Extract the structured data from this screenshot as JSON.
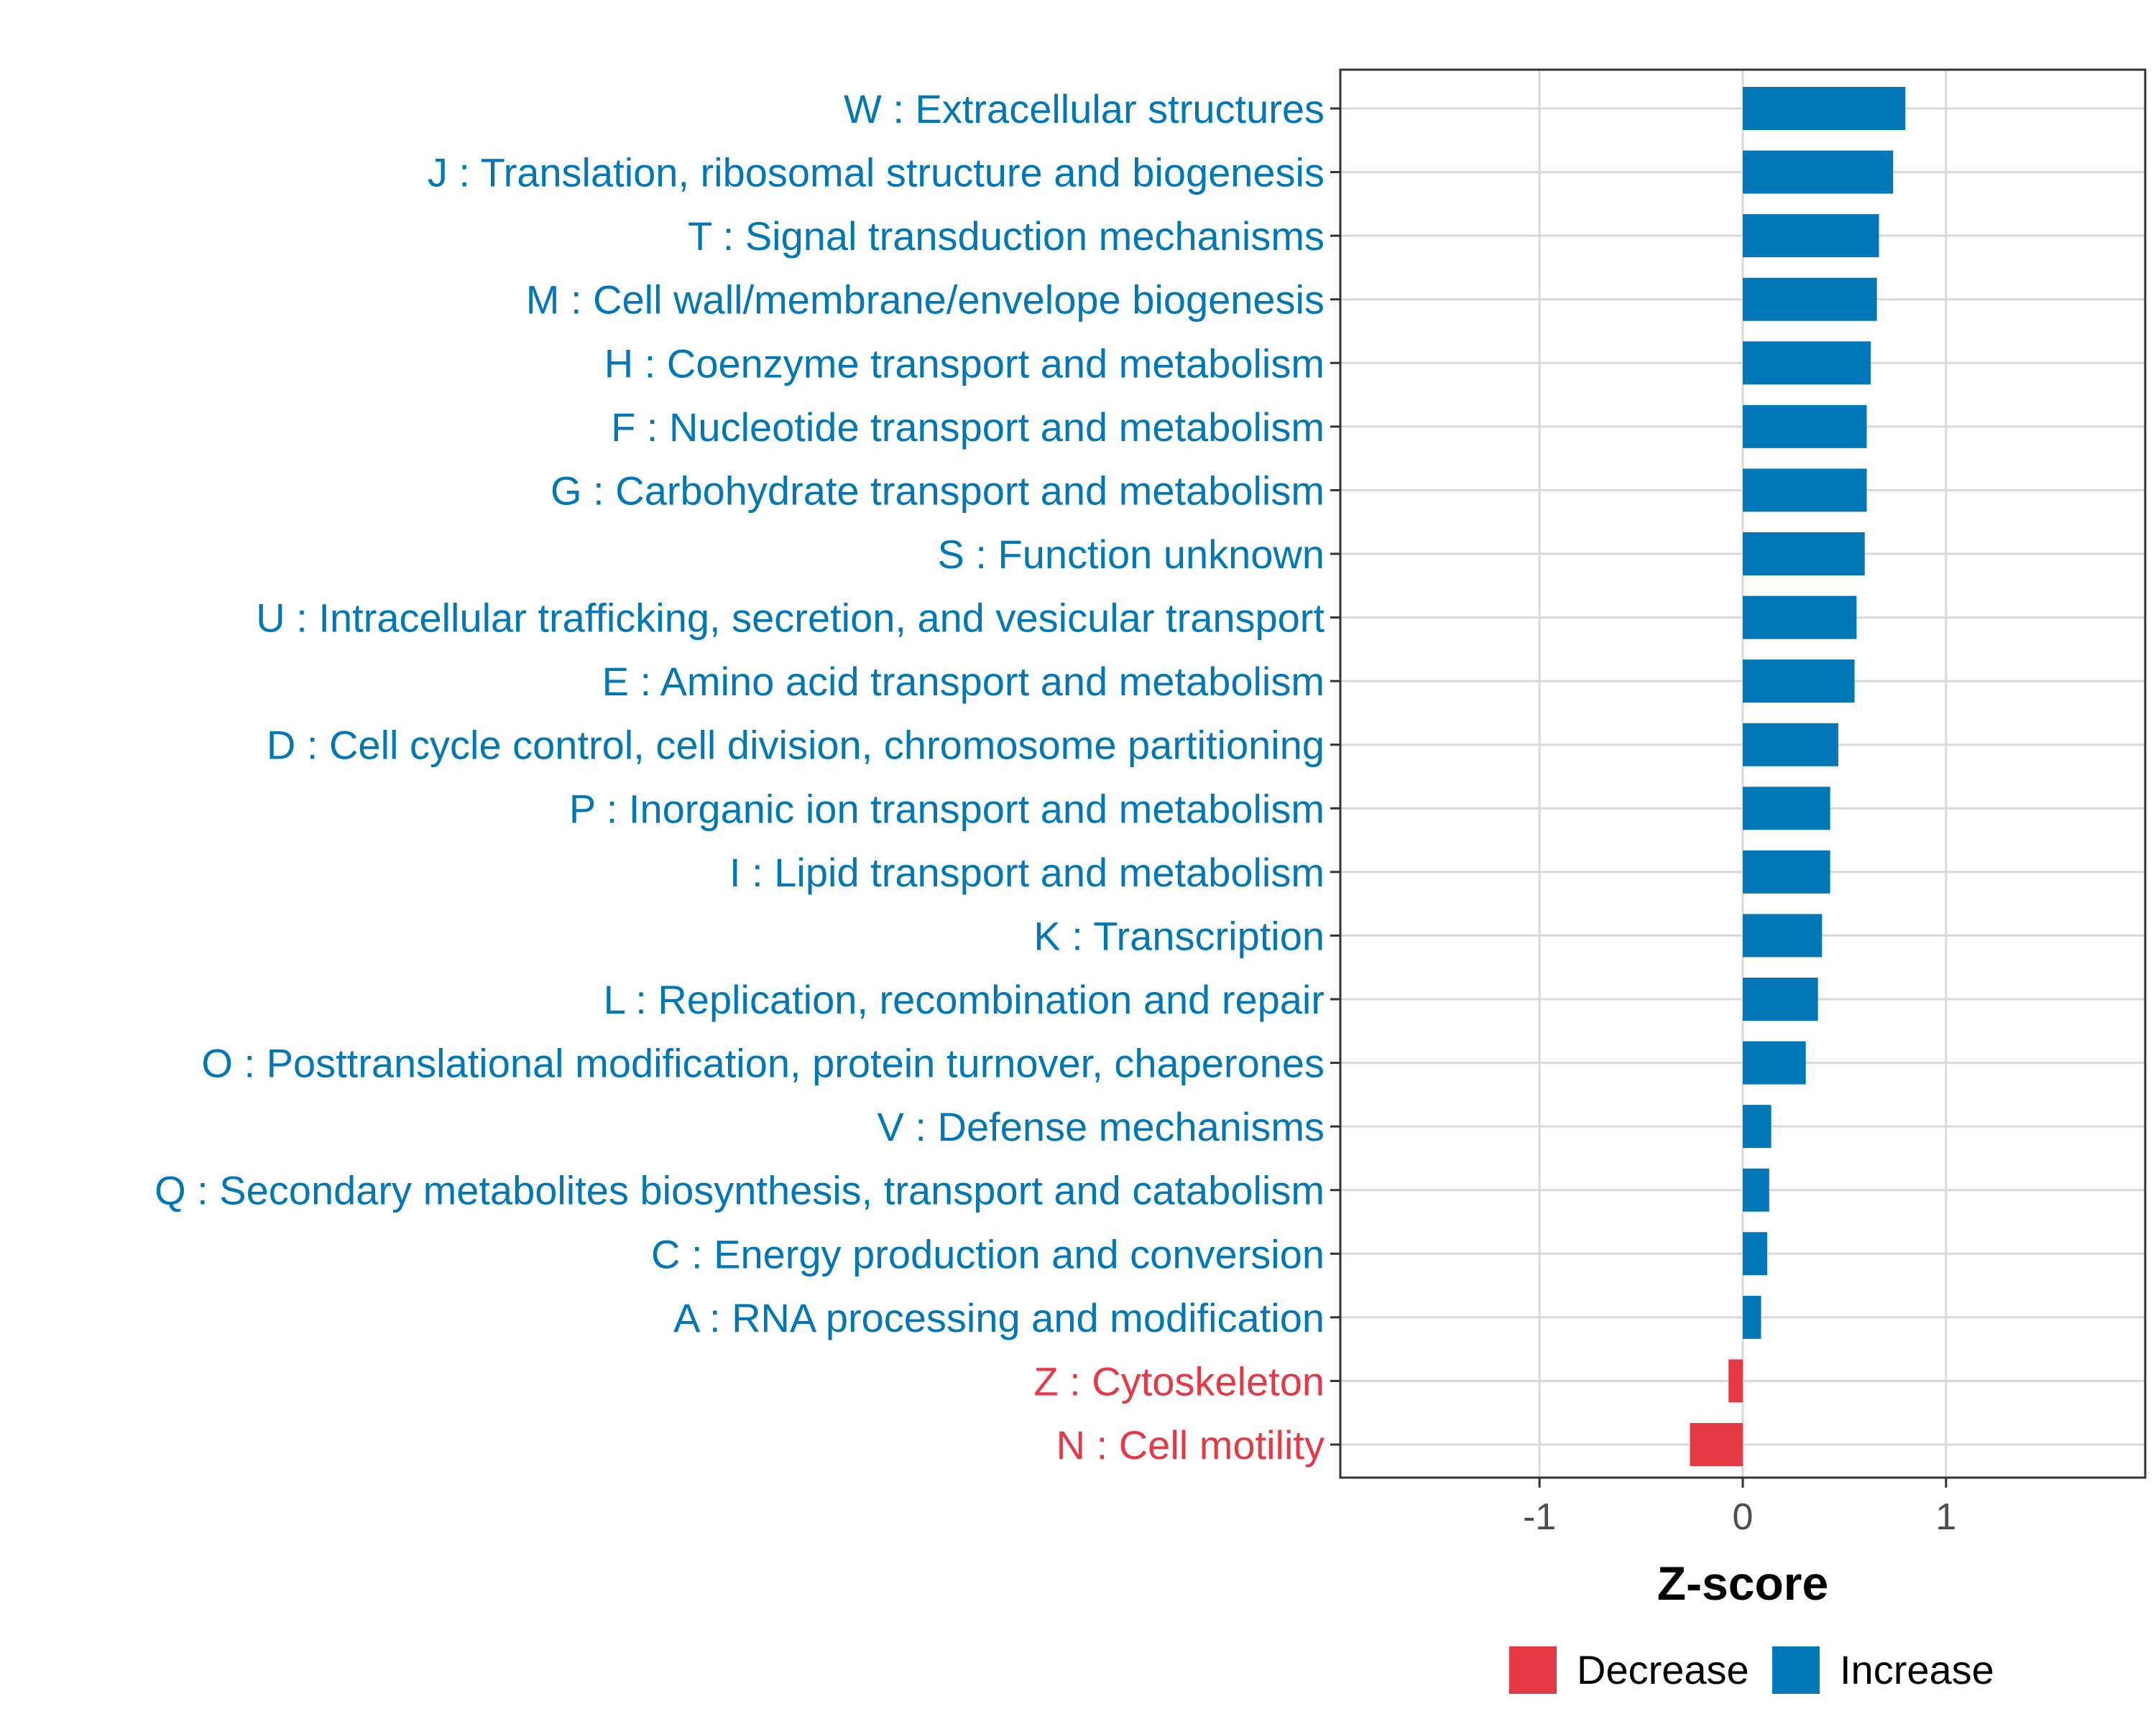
{
  "chart_data": {
    "type": "bar",
    "orientation": "horizontal",
    "xlabel": "Z-score",
    "ylabel": "",
    "title": "",
    "xlim": [
      -1.98,
      1.98
    ],
    "xticks": [
      -1,
      0,
      1
    ],
    "xtick_labels": [
      "-1",
      "0",
      "1"
    ],
    "grid": true,
    "legend_position": "bottom",
    "colors": {
      "Decrease": "#E63946",
      "Increase": "#0077B6"
    },
    "legend": [
      {
        "label": "Decrease",
        "color": "#E63946"
      },
      {
        "label": "Increase",
        "color": "#0077B6"
      }
    ],
    "categories": [
      {
        "label": "W : Extracellular structures",
        "value": 0.8,
        "group": "Increase"
      },
      {
        "label": "J : Translation, ribosomal structure and biogenesis",
        "value": 0.74,
        "group": "Increase"
      },
      {
        "label": "T : Signal transduction mechanisms",
        "value": 0.67,
        "group": "Increase"
      },
      {
        "label": "M : Cell wall/membrane/envelope biogenesis",
        "value": 0.66,
        "group": "Increase"
      },
      {
        "label": "H : Coenzyme transport and metabolism",
        "value": 0.63,
        "group": "Increase"
      },
      {
        "label": "F : Nucleotide transport and metabolism",
        "value": 0.61,
        "group": "Increase"
      },
      {
        "label": "G : Carbohydrate transport and metabolism",
        "value": 0.61,
        "group": "Increase"
      },
      {
        "label": "S : Function unknown",
        "value": 0.6,
        "group": "Increase"
      },
      {
        "label": "U : Intracellular trafficking, secretion, and vesicular transport",
        "value": 0.56,
        "group": "Increase"
      },
      {
        "label": "E : Amino acid transport and metabolism",
        "value": 0.55,
        "group": "Increase"
      },
      {
        "label": "D : Cell cycle control, cell division, chromosome partitioning",
        "value": 0.47,
        "group": "Increase"
      },
      {
        "label": "P : Inorganic ion transport and metabolism",
        "value": 0.43,
        "group": "Increase"
      },
      {
        "label": "I : Lipid transport and metabolism",
        "value": 0.43,
        "group": "Increase"
      },
      {
        "label": "K : Transcription",
        "value": 0.39,
        "group": "Increase"
      },
      {
        "label": "L : Replication, recombination and repair",
        "value": 0.37,
        "group": "Increase"
      },
      {
        "label": "O : Posttranslational modification, protein turnover, chaperones",
        "value": 0.31,
        "group": "Increase"
      },
      {
        "label": "V : Defense mechanisms",
        "value": 0.14,
        "group": "Increase"
      },
      {
        "label": "Q : Secondary metabolites biosynthesis, transport and catabolism",
        "value": 0.13,
        "group": "Increase"
      },
      {
        "label": "C : Energy production and conversion",
        "value": 0.12,
        "group": "Increase"
      },
      {
        "label": "A : RNA processing and modification",
        "value": 0.09,
        "group": "Increase"
      },
      {
        "label": "Z : Cytoskeleton",
        "value": -0.07,
        "group": "Decrease"
      },
      {
        "label": "N : Cell motility",
        "value": -0.26,
        "group": "Decrease"
      }
    ]
  }
}
